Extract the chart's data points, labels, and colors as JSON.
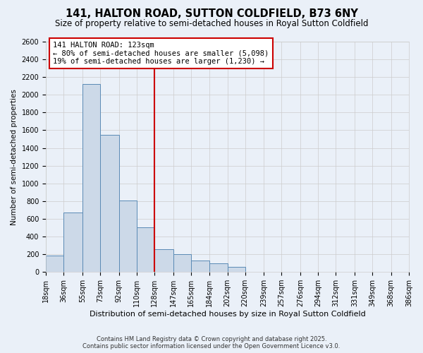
{
  "title": "141, HALTON ROAD, SUTTON COLDFIELD, B73 6NY",
  "subtitle": "Size of property relative to semi-detached houses in Royal Sutton Coldfield",
  "xlabel": "Distribution of semi-detached houses by size in Royal Sutton Coldfield",
  "ylabel": "Number of semi-detached properties",
  "footer_line1": "Contains HM Land Registry data © Crown copyright and database right 2025.",
  "footer_line2": "Contains public sector information licensed under the Open Government Licence v3.0.",
  "annotation_title": "141 HALTON ROAD: 123sqm",
  "annotation_line2": "← 80% of semi-detached houses are smaller (5,098)",
  "annotation_line3": "19% of semi-detached houses are larger (1,230) →",
  "bin_edges": [
    18,
    36,
    55,
    73,
    92,
    110,
    128,
    147,
    165,
    184,
    202,
    220,
    239,
    257,
    276,
    294,
    312,
    331,
    349,
    368,
    386
  ],
  "bar_heights": [
    185,
    670,
    2120,
    1550,
    810,
    500,
    260,
    200,
    130,
    95,
    60,
    5,
    0,
    0,
    0,
    0,
    5,
    0,
    0,
    0
  ],
  "bar_color": "#ccd9e8",
  "bar_edge_color": "#5a8ab5",
  "vline_color": "#cc0000",
  "vline_x": 128,
  "ylim": [
    0,
    2600
  ],
  "yticks": [
    0,
    200,
    400,
    600,
    800,
    1000,
    1200,
    1400,
    1600,
    1800,
    2000,
    2200,
    2400,
    2600
  ],
  "grid_color": "#cccccc",
  "bg_color": "#eaf0f8",
  "annotation_box_color": "#ffffff",
  "annotation_box_edge": "#cc0000",
  "title_fontsize": 10.5,
  "subtitle_fontsize": 8.5,
  "axis_label_fontsize": 7.5,
  "tick_fontsize": 7,
  "annotation_fontsize": 7.5,
  "footer_fontsize": 6
}
